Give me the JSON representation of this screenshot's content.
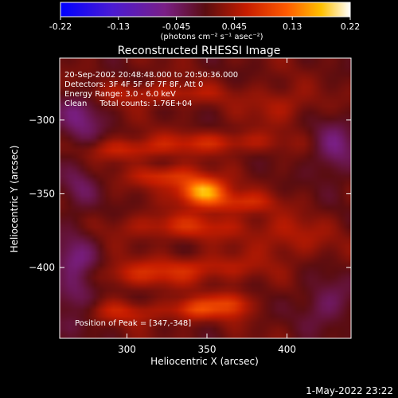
{
  "chart_data": {
    "type": "heatmap",
    "title": "Reconstructed RHESSI Image",
    "colorbar": {
      "ticks": [
        "-0.22",
        "-0.13",
        "-0.045",
        "0.045",
        "0.13",
        "0.22"
      ],
      "range": [
        -0.22,
        0.22
      ],
      "unit_label": "(photons cm⁻² s⁻¹ asec⁻²)"
    },
    "xlabel": "Heliocentric X (arcsec)",
    "ylabel": "Heliocentric Y (arcsec)",
    "xlim": [
      258,
      440
    ],
    "ylim": [
      -448,
      -258
    ],
    "xticks": [
      {
        "v": 300,
        "label": "300"
      },
      {
        "v": 350,
        "label": "350"
      },
      {
        "v": 400,
        "label": "400"
      }
    ],
    "yticks": [
      {
        "v": -300,
        "label": "−300"
      },
      {
        "v": -350,
        "label": "−350"
      },
      {
        "v": -400,
        "label": "−400"
      }
    ],
    "info_lines": [
      "20-Sep-2002 20:48:48.000 to 20:50:36.000",
      "Detectors: 3F 4F 5F 6F 7F 8F, Att 0",
      "Energy Range: 3.0 - 6.0 keV",
      "Clean     Total counts: 1.76E+04"
    ],
    "peak_label": "Position of Peak = [347,-348]",
    "peak": {
      "x": 347,
      "y": -348,
      "value": 0.22
    },
    "sources": [
      {
        "x": 347,
        "y": -348,
        "sx": 10,
        "sy": 6,
        "amp": 0.17
      },
      {
        "x": 325,
        "y": -338,
        "sx": 14,
        "sy": 5,
        "amp": 0.08
      },
      {
        "x": 368,
        "y": -356,
        "sx": 16,
        "sy": 5,
        "amp": 0.07
      },
      {
        "x": 335,
        "y": -372,
        "sx": 28,
        "sy": 6,
        "amp": 0.06
      },
      {
        "x": 300,
        "y": -320,
        "sx": 18,
        "sy": 5,
        "amp": 0.06
      },
      {
        "x": 355,
        "y": -315,
        "sx": 26,
        "sy": 5,
        "amp": 0.06
      },
      {
        "x": 320,
        "y": -282,
        "sx": 30,
        "sy": 5,
        "amp": 0.05
      },
      {
        "x": 305,
        "y": -405,
        "sx": 26,
        "sy": 6,
        "amp": 0.05
      },
      {
        "x": 348,
        "y": -400,
        "sx": 24,
        "sy": 6,
        "amp": 0.05
      },
      {
        "x": 300,
        "y": -430,
        "sx": 22,
        "sy": 5,
        "amp": 0.05
      },
      {
        "x": 343,
        "y": -428,
        "sx": 9,
        "sy": 5,
        "amp": 0.09
      },
      {
        "x": 365,
        "y": -425,
        "sx": 8,
        "sy": 6,
        "amp": 0.09
      },
      {
        "x": 395,
        "y": -290,
        "sx": 14,
        "sy": 8,
        "amp": 0.04
      },
      {
        "x": 400,
        "y": -380,
        "sx": 18,
        "sy": 10,
        "amp": 0.04
      },
      {
        "x": 270,
        "y": -300,
        "sx": 10,
        "sy": 14,
        "amp": -0.06
      },
      {
        "x": 268,
        "y": -405,
        "sx": 10,
        "sy": 22,
        "amp": -0.07
      },
      {
        "x": 430,
        "y": -320,
        "sx": 10,
        "sy": 14,
        "amp": -0.06
      },
      {
        "x": 425,
        "y": -425,
        "sx": 12,
        "sy": 12,
        "amp": -0.05
      },
      {
        "x": 270,
        "y": -345,
        "sx": 8,
        "sy": 10,
        "amp": -0.04
      }
    ]
  },
  "footer": {
    "timestamp": "1-May-2022 23:22"
  }
}
